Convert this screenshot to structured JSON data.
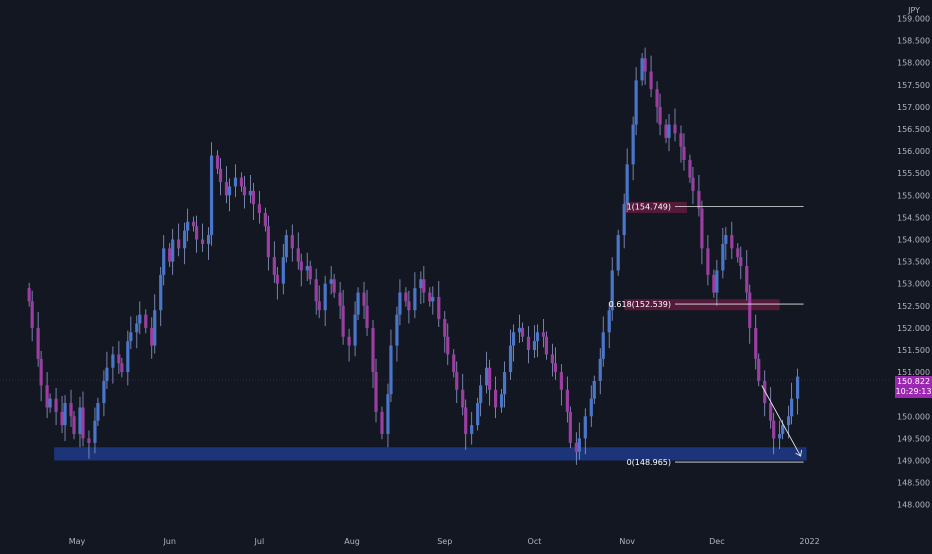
{
  "currency_label": "JPY",
  "price_label": {
    "value": "150.822",
    "countdown": "10:29:13"
  },
  "colors": {
    "background": "#131722",
    "up_body": "#4a76c9",
    "down_body": "#9a3fa0",
    "wick": "#8f9ccc",
    "support_zone": "#1e3a8a",
    "resistance_zone": "#8a1e4e",
    "fib_line": "#e6e6e6",
    "price_tag": "#9c27b0",
    "axis_text": "#b2b5be"
  },
  "chart_data": {
    "type": "candlestick",
    "title": "",
    "xlabel": "",
    "ylabel": "",
    "ylim": [
      147.5,
      159.2
    ],
    "xlim": [
      "2021-04-15",
      "2022-01-10"
    ],
    "x_ticks": [
      {
        "label": "May",
        "date": "2021-05-01"
      },
      {
        "label": "Jun",
        "date": "2021-06-01"
      },
      {
        "label": "Jul",
        "date": "2021-07-01"
      },
      {
        "label": "Aug",
        "date": "2021-08-01"
      },
      {
        "label": "Sep",
        "date": "2021-09-01"
      },
      {
        "label": "Oct",
        "date": "2021-10-01"
      },
      {
        "label": "Nov",
        "date": "2021-11-01"
      },
      {
        "label": "Dec",
        "date": "2021-12-01"
      },
      {
        "label": "2022",
        "date": "2022-01-01"
      }
    ],
    "y_ticks": [
      "148.000",
      "148.500",
      "149.000",
      "149.500",
      "150.000",
      "150.500",
      "151.000",
      "151.500",
      "152.000",
      "152.500",
      "153.000",
      "153.500",
      "154.000",
      "154.500",
      "155.000",
      "155.500",
      "156.000",
      "156.500",
      "157.000",
      "157.500",
      "158.000",
      "158.500",
      "159.000"
    ],
    "candle_closes_start": "2021-04-15",
    "candle_closes": [
      152.6,
      152.0,
      151.3,
      150.7,
      150.2,
      150.4,
      150.1,
      149.8,
      150.3,
      150.0,
      149.6,
      150.2,
      149.5,
      149.4,
      149.9,
      150.3,
      150.8,
      151.1,
      151.4,
      151.2,
      151.0,
      151.7,
      151.9,
      152.1,
      152.3,
      152.0,
      151.6,
      152.4,
      153.2,
      153.8,
      153.5,
      154.0,
      153.8,
      154.2,
      154.4,
      154.3,
      154.0,
      153.9,
      154.1,
      155.9,
      155.6,
      155.3,
      155.0,
      155.2,
      155.4,
      155.2,
      155.0,
      155.1,
      154.8,
      154.6,
      154.3,
      153.6,
      153.2,
      153.0,
      153.6,
      154.1,
      153.8,
      153.5,
      153.3,
      153.4,
      153.1,
      152.6,
      152.4,
      153.0,
      153.1,
      152.8,
      152.5,
      151.8,
      151.6,
      152.3,
      152.8,
      152.5,
      152.0,
      151.0,
      150.1,
      149.6,
      150.5,
      151.6,
      152.3,
      152.8,
      152.6,
      152.4,
      152.9,
      153.1,
      152.8,
      152.6,
      152.7,
      152.2,
      151.8,
      151.4,
      151.0,
      150.6,
      150.2,
      149.6,
      149.8,
      150.3,
      150.7,
      151.1,
      150.6,
      150.2,
      150.5,
      151.0,
      151.6,
      151.9,
      152.0,
      151.8,
      151.5,
      151.7,
      151.9,
      151.8,
      151.4,
      151.2,
      151.0,
      150.6,
      150.1,
      149.4,
      149.2,
      149.5,
      150.0,
      150.4,
      150.8,
      151.3,
      151.9,
      152.4,
      153.3,
      154.1,
      154.8,
      155.7,
      156.6,
      157.6,
      158.1,
      157.8,
      157.4,
      157.0,
      156.6,
      156.3,
      156.6,
      156.4,
      156.1,
      155.8,
      155.4,
      155.1,
      154.7,
      153.8,
      153.2,
      152.8,
      153.3,
      153.9,
      154.1,
      153.8,
      153.6,
      153.4,
      152.8,
      152.0,
      151.3,
      150.8,
      150.3,
      149.9,
      149.5,
      149.6,
      149.8,
      150.0,
      150.4,
      150.9
    ],
    "support_zone": {
      "y_from": 149.0,
      "y_to": 149.3,
      "x_from": "2021-04-15",
      "x_to": "2021-12-31"
    },
    "resistance_zones": [
      {
        "y_from": 154.6,
        "y_to": 154.85,
        "x_from": "2021-10-31",
        "x_to": "2021-11-21"
      },
      {
        "y_from": 152.4,
        "y_to": 152.65,
        "x_from": "2021-10-31",
        "x_to": "2021-12-22"
      }
    ],
    "fib_levels": [
      {
        "label": "1(154.749)",
        "value": 154.749
      },
      {
        "label": "0.618(152.539)",
        "value": 152.539
      },
      {
        "label": "0(148.965)",
        "value": 148.965
      }
    ],
    "fib_x_range": [
      "2021-11-17",
      "2021-12-30"
    ],
    "last_price": 150.822,
    "arrow": {
      "from": {
        "date": "2021-12-16",
        "value": 150.7
      },
      "to": {
        "date": "2021-12-29",
        "value": 149.1
      }
    }
  }
}
